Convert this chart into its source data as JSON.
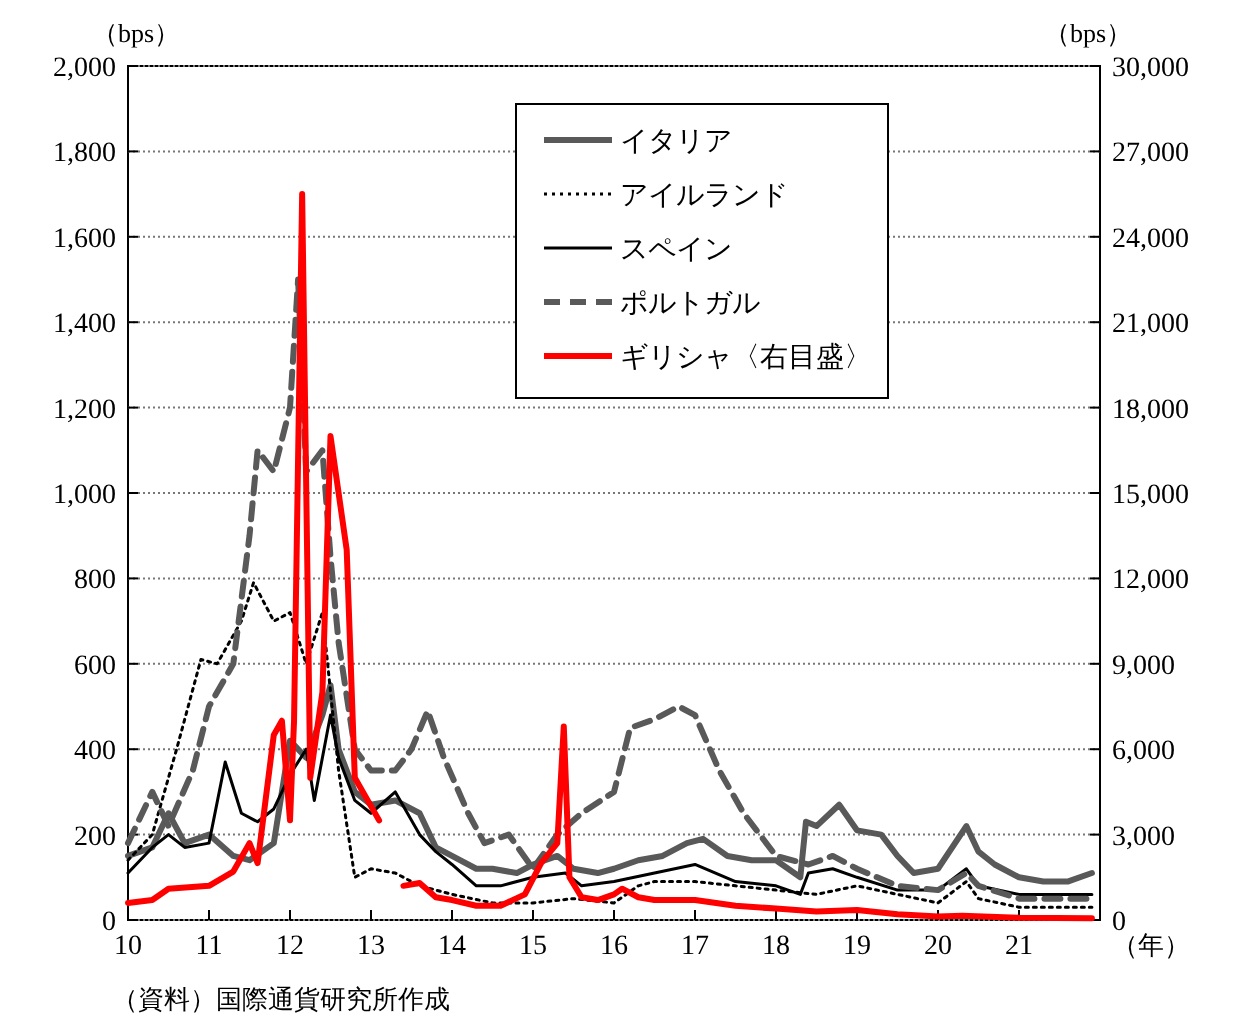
{
  "chart_data": {
    "type": "line",
    "ylabel": "（bps）",
    "y2label": "（bps）",
    "xlabel": "（年）",
    "annotations": [
      "（資料）国際通貨研究所作成"
    ],
    "xlim": [
      10,
      22
    ],
    "xticks": [
      10,
      11,
      12,
      13,
      14,
      15,
      16,
      17,
      18,
      19,
      20,
      21
    ],
    "ylim": [
      0,
      2000
    ],
    "yticks": [
      0,
      200,
      400,
      600,
      800,
      {
        "value": 1000,
        "label": "1,000"
      },
      {
        "value": 1200,
        "label": "1,200"
      },
      {
        "value": 1400,
        "label": "1,400"
      },
      {
        "value": 1600,
        "label": "1,600"
      },
      {
        "value": 1800,
        "label": "1,800"
      },
      {
        "value": 2000,
        "label": "2,000"
      }
    ],
    "y2lim": [
      0,
      30000
    ],
    "y2ticks": [
      0,
      {
        "value": 3000,
        "label": "3,000"
      },
      {
        "value": 6000,
        "label": "6,000"
      },
      {
        "value": 9000,
        "label": "9,000"
      },
      {
        "value": 12000,
        "label": "12,000"
      },
      {
        "value": 15000,
        "label": "15,000"
      },
      {
        "value": 18000,
        "label": "18,000"
      },
      {
        "value": 21000,
        "label": "21,000"
      },
      {
        "value": 24000,
        "label": "24,000"
      },
      {
        "value": 27000,
        "label": "27,000"
      },
      {
        "value": 30000,
        "label": "30,000"
      }
    ],
    "grid": "y",
    "legend": "top",
    "series": [
      {
        "name": "イタリア",
        "color": "#595959",
        "line_style": "solid",
        "x": [
          10,
          10.3,
          10.5,
          10.7,
          11,
          11.3,
          11.5,
          11.8,
          12,
          12.2,
          12.4,
          12.5,
          12.6,
          12.8,
          13,
          13.3,
          13.6,
          13.8,
          14,
          14.3,
          14.5,
          14.8,
          15,
          15.3,
          15.5,
          15.8,
          16,
          16.3,
          16.6,
          16.9,
          17.1,
          17.4,
          17.7,
          18,
          18.3,
          18.37,
          18.5,
          18.78,
          19,
          19.3,
          19.5,
          19.7,
          20,
          20.35,
          20.5,
          20.7,
          21,
          21.3,
          21.6,
          21.9
        ],
        "values": [
          150,
          170,
          250,
          180,
          200,
          150,
          140,
          180,
          420,
          380,
          480,
          550,
          400,
          300,
          270,
          280,
          250,
          170,
          150,
          120,
          120,
          110,
          130,
          150,
          120,
          110,
          120,
          140,
          150,
          180,
          190,
          150,
          140,
          140,
          100,
          230,
          220,
          270,
          210,
          200,
          150,
          110,
          120,
          220,
          160,
          130,
          100,
          90,
          90,
          110
        ]
      },
      {
        "name": "アイルランド",
        "color": "#000000",
        "line_style": "dotted",
        "x": [
          10,
          10.3,
          10.6,
          10.9,
          11.1,
          11.4,
          11.55,
          11.8,
          12,
          12.2,
          12.4,
          12.6,
          12.8,
          13,
          13.3,
          13.6,
          14,
          14.5,
          15,
          15.5,
          16,
          16.3,
          16.5,
          17,
          17.5,
          18,
          18.5,
          19,
          19.5,
          20,
          20.35,
          20.5,
          21,
          21.9
        ],
        "values": [
          140,
          200,
          400,
          610,
          600,
          700,
          790,
          700,
          720,
          600,
          720,
          350,
          100,
          120,
          110,
          80,
          60,
          40,
          40,
          50,
          40,
          80,
          90,
          90,
          80,
          70,
          60,
          80,
          60,
          40,
          90,
          50,
          30,
          30
        ]
      },
      {
        "name": "スペイン",
        "color": "#000000",
        "line_style": "solid",
        "x": [
          10,
          10.3,
          10.5,
          10.7,
          11,
          11.2,
          11.4,
          11.6,
          11.8,
          12,
          12.2,
          12.3,
          12.5,
          12.6,
          12.8,
          13,
          13.3,
          13.6,
          13.8,
          14,
          14.3,
          14.6,
          15,
          15.4,
          15.6,
          16,
          16.5,
          17,
          17.5,
          18,
          18.3,
          18.4,
          18.7,
          19,
          19.5,
          20,
          20.35,
          20.5,
          21,
          21.9
        ],
        "values": [
          110,
          170,
          200,
          170,
          180,
          370,
          250,
          230,
          260,
          340,
          400,
          280,
          480,
          380,
          280,
          250,
          300,
          200,
          160,
          130,
          80,
          80,
          100,
          110,
          80,
          90,
          110,
          130,
          90,
          80,
          60,
          110,
          120,
          100,
          70,
          70,
          120,
          80,
          60,
          60
        ]
      },
      {
        "name": "ポルトガル",
        "color": "#595959",
        "line_style": "dashed",
        "x": [
          10,
          10.3,
          10.5,
          10.8,
          11,
          11.3,
          11.5,
          11.6,
          11.8,
          12,
          12.1,
          12.2,
          12.4,
          12.5,
          12.6,
          12.8,
          13,
          13.3,
          13.5,
          13.7,
          13.9,
          14.2,
          14.4,
          14.7,
          15,
          15.3,
          15.6,
          16,
          16.2,
          16.5,
          16.8,
          17,
          17.3,
          17.6,
          18,
          18.4,
          18.7,
          19,
          19.5,
          20,
          20.35,
          20.5,
          21,
          21.9
        ],
        "values": [
          180,
          300,
          220,
          350,
          500,
          600,
          900,
          1100,
          1050,
          1200,
          1500,
          1050,
          1100,
          850,
          650,
          400,
          350,
          350,
          400,
          490,
          380,
          250,
          180,
          200,
          120,
          200,
          250,
          300,
          450,
          470,
          500,
          480,
          350,
          250,
          150,
          130,
          150,
          120,
          80,
          70,
          110,
          80,
          50,
          50
        ]
      },
      {
        "name": "ギリシャ〈右目盛〉",
        "color": "#ff0000",
        "line_style": "solid",
        "axis": "y2",
        "x": [
          10,
          10.3,
          10.5,
          11,
          11.3,
          11.5,
          11.6,
          11.8,
          11.9,
          12,
          12.05,
          12.15,
          12.25,
          12.4,
          12.5,
          12.7,
          12.8,
          13,
          13.1,
          13.25,
          13.4,
          13.6,
          13.8,
          14,
          14.3,
          14.6,
          14.9,
          15.1,
          15.3,
          15.38,
          15.45,
          15.6,
          15.8,
          16,
          16.1,
          16.3,
          16.5,
          17,
          17.5,
          18,
          18.5,
          19,
          19.5,
          20,
          20.3,
          21,
          21.9
        ],
        "values": [
          600,
          700,
          1100,
          1200,
          1700,
          2700,
          2000,
          6500,
          7000,
          3500,
          7000,
          25500,
          5000,
          8000,
          17000,
          13000,
          5000,
          4000,
          3500,
          null,
          1200,
          1300,
          800,
          700,
          500,
          500,
          900,
          2000,
          2700,
          6800,
          1500,
          800,
          700,
          900,
          1100,
          800,
          700,
          700,
          500,
          400,
          300,
          350,
          200,
          120,
          150,
          80,
          60
        ]
      }
    ]
  }
}
